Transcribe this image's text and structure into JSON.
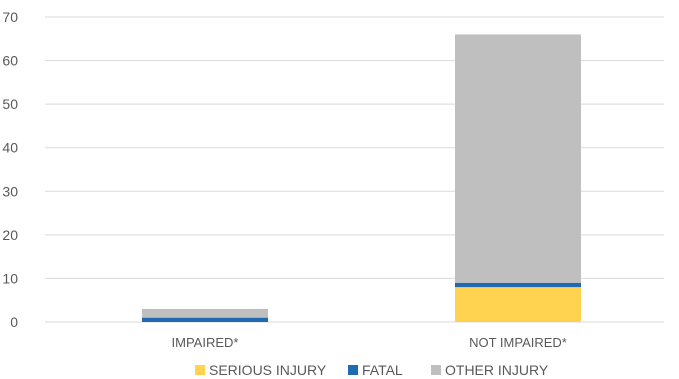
{
  "chart_data": {
    "type": "bar",
    "stacked": true,
    "categories": [
      "IMPAIRED*",
      "NOT IMPAIRED*"
    ],
    "series": [
      {
        "name": "SERIOUS INJURY",
        "values": [
          0,
          8
        ],
        "color": "#FFD24F"
      },
      {
        "name": "FATAL",
        "values": [
          1,
          1
        ],
        "color": "#1F6AB0"
      },
      {
        "name": "OTHER INJURY",
        "values": [
          2,
          57
        ],
        "color": "#BFBFBF"
      }
    ],
    "ylim": [
      0,
      70
    ],
    "yticks": [
      0,
      10,
      20,
      30,
      40,
      50,
      60,
      70
    ],
    "grid": true,
    "legend": "bottom"
  }
}
